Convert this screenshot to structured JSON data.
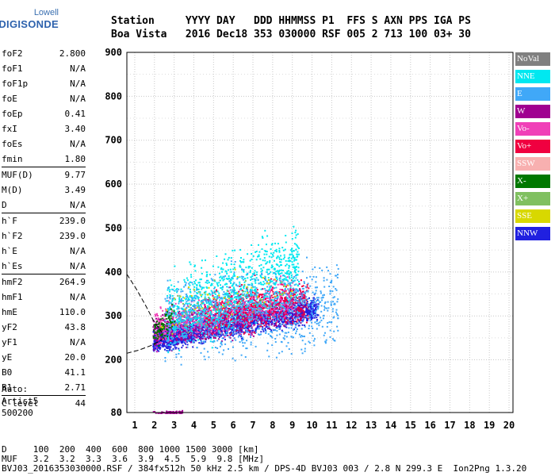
{
  "logo": {
    "line1": "Lowell",
    "line2": "DIGISONDE"
  },
  "header": {
    "line1": "Station     YYYY DAY   DDD HHMMSS P1  FFS S AXN PPS IGA PS",
    "line2": "Boa Vista   2016 Dec18 353 030000 RSF 005 2 713 100 03+ 30"
  },
  "params": [
    {
      "k": "foF2",
      "v": "2.800"
    },
    {
      "k": "foF1",
      "v": "N/A"
    },
    {
      "k": "foF1p",
      "v": "N/A"
    },
    {
      "k": "foE",
      "v": "N/A"
    },
    {
      "k": "foEp",
      "v": "0.41"
    },
    {
      "k": "fxI",
      "v": "3.40"
    },
    {
      "k": "foEs",
      "v": "N/A"
    },
    {
      "k": "fmin",
      "v": "1.80"
    },
    {
      "sep": true
    },
    {
      "k": "MUF(D)",
      "v": "9.77"
    },
    {
      "k": "M(D)",
      "v": "3.49"
    },
    {
      "k": "D",
      "v": "N/A"
    },
    {
      "sep": true
    },
    {
      "k": "h`F",
      "v": "239.0"
    },
    {
      "k": "h`F2",
      "v": "239.0"
    },
    {
      "k": "h`E",
      "v": "N/A"
    },
    {
      "k": "h`Es",
      "v": "N/A"
    },
    {
      "sep": true
    },
    {
      "k": "hmF2",
      "v": "264.9"
    },
    {
      "k": "hmF1",
      "v": "N/A"
    },
    {
      "k": "hmE",
      "v": "110.0"
    },
    {
      "k": "yF2",
      "v": "43.8"
    },
    {
      "k": "yF1",
      "v": "N/A"
    },
    {
      "k": "yE",
      "v": "20.0"
    },
    {
      "k": "B0",
      "v": "41.1"
    },
    {
      "k": "B1",
      "v": "2.71"
    },
    {
      "sep": true
    },
    {
      "k": "C-level",
      "v": "44"
    }
  ],
  "auto": {
    "line1": "Auto:",
    "line2": "Artist5",
    "line3": "500200"
  },
  "footer": {
    "row_d": "D     100  200  400  600  800 1000 1500 3000 [km]",
    "row_muf": "MUF   3.2  3.2  3.3  3.6  3.9  4.5  5.9  9.8 [MHz]",
    "row_file": "BVJ03_2016353030000.RSF / 384fx512h 50 kHz 2.5 km / DPS-4D BVJ03 003 / 2.8 N 299.3 E  Ion2Png 1.3.20"
  },
  "legend": [
    {
      "label": "NoVal",
      "color": "#808080",
      "text": "#ffffff"
    },
    {
      "label": "NNE",
      "color": "#00e8f0",
      "text": "#ffffff"
    },
    {
      "label": "E",
      "color": "#40a8f8",
      "text": "#ffffff"
    },
    {
      "label": "W",
      "color": "#a00090",
      "text": "#ffffff"
    },
    {
      "label": "Vo-",
      "color": "#f040b8",
      "text": "#ffffff"
    },
    {
      "label": "Vo+",
      "color": "#f00040",
      "text": "#ffffff"
    },
    {
      "label": "SSW",
      "color": "#f8b0b0",
      "text": "#ffffff"
    },
    {
      "label": "X-",
      "color": "#007800",
      "text": "#ffffff"
    },
    {
      "label": "X+",
      "color": "#80c060",
      "text": "#ffffff"
    },
    {
      "label": "SSE",
      "color": "#d8d800",
      "text": "#ffffff"
    },
    {
      "label": "NNW",
      "color": "#2020e0",
      "text": "#ffffff"
    }
  ],
  "chart_data": {
    "type": "scatter",
    "xlim": [
      0.6,
      20.2
    ],
    "ylim": [
      80,
      900
    ],
    "x_ticks": [
      1,
      2,
      3,
      4,
      5,
      6,
      7,
      8,
      9,
      10,
      11,
      12,
      13,
      14,
      15,
      16,
      17,
      18,
      19,
      20
    ],
    "y_ticks": [
      80,
      200,
      300,
      400,
      500,
      600,
      700,
      800,
      900
    ],
    "grid": true,
    "legend_placement": "right",
    "series": [
      {
        "name": "NNW",
        "color": "#2020e0",
        "clouds": [
          {
            "x": [
              1.9,
              10.3
            ],
            "y": [
              248,
              318
            ],
            "spread": 14,
            "n": 1600
          },
          {
            "x": [
              1.9,
              4.0
            ],
            "y": [
              240,
              262
            ],
            "spread": 10,
            "n": 300
          }
        ]
      },
      {
        "name": "W",
        "color": "#a00090",
        "clouds": [
          {
            "x": [
              1.9,
              9.6
            ],
            "y": [
              262,
              330
            ],
            "spread": 20,
            "n": 1000
          },
          {
            "x": [
              1.9,
              3.4
            ],
            "y": [
              78,
              82
            ],
            "spread": 2,
            "n": 160
          }
        ]
      },
      {
        "name": "Vo-",
        "color": "#f040b8",
        "clouds": [
          {
            "x": [
              2.0,
              9.0
            ],
            "y": [
              275,
              340
            ],
            "spread": 22,
            "n": 700
          }
        ]
      },
      {
        "name": "Vo+",
        "color": "#f00040",
        "clouds": [
          {
            "x": [
              4.5,
              9.8
            ],
            "y": [
              305,
              340
            ],
            "spread": 25,
            "n": 500
          }
        ]
      },
      {
        "name": "NNE",
        "color": "#00e8f0",
        "clouds": [
          {
            "x": [
              2.6,
              9.3
            ],
            "y": [
              300,
              420
            ],
            "spread": 40,
            "n": 1000
          }
        ]
      },
      {
        "name": "E",
        "color": "#40a8f8",
        "clouds": [
          {
            "x": [
              2.5,
              11.3
            ],
            "y": [
              290,
              330
            ],
            "spread": 45,
            "n": 900
          }
        ]
      },
      {
        "name": "X-",
        "color": "#007800",
        "clouds": [
          {
            "x": [
              1.9,
              3.0
            ],
            "y": [
              260,
              300
            ],
            "spread": 15,
            "n": 80
          }
        ]
      },
      {
        "name": "X+",
        "color": "#80c060",
        "clouds": [
          {
            "x": [
              2.5,
              8.5
            ],
            "y": [
              300,
              360
            ],
            "spread": 25,
            "n": 60
          }
        ]
      },
      {
        "name": "SSE",
        "color": "#d8d800",
        "clouds": [
          {
            "x": [
              2.2,
              9.0
            ],
            "y": [
              300,
              380
            ],
            "spread": 25,
            "n": 50
          }
        ]
      }
    ],
    "virtual_height_trace": [
      {
        "x": 0.6,
        "y": 395
      },
      {
        "x": 1.1,
        "y": 360
      },
      {
        "x": 1.6,
        "y": 320
      },
      {
        "x": 2.0,
        "y": 285
      },
      {
        "x": 2.4,
        "y": 262
      }
    ],
    "lower_trace": [
      {
        "x": 0.6,
        "y": 215
      },
      {
        "x": 1.2,
        "y": 222
      },
      {
        "x": 1.8,
        "y": 232
      },
      {
        "x": 2.4,
        "y": 246
      }
    ]
  }
}
